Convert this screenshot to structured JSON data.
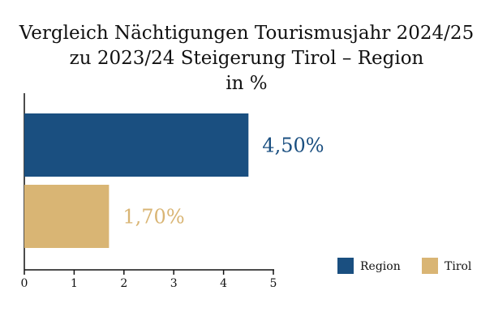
{
  "chart_data": {
    "type": "bar",
    "orientation": "horizontal",
    "title": [
      "Vergleich Nächtigungen Tourismusjahr 2024/25",
      "zu 2023/24 Steigerung Tirol – Region",
      "in %"
    ],
    "series": [
      {
        "name": "Region",
        "color": "#1a4f80",
        "values": [
          4.5
        ],
        "value_labels": [
          "4,50%"
        ]
      },
      {
        "name": "Tirol",
        "color": "#d9b574",
        "values": [
          1.7
        ],
        "value_labels": [
          "1,70%"
        ]
      }
    ],
    "xlim": [
      0,
      5
    ],
    "xticks": [
      0,
      1,
      2,
      3,
      4,
      5
    ],
    "grid": false,
    "legend": "bottom-right"
  }
}
